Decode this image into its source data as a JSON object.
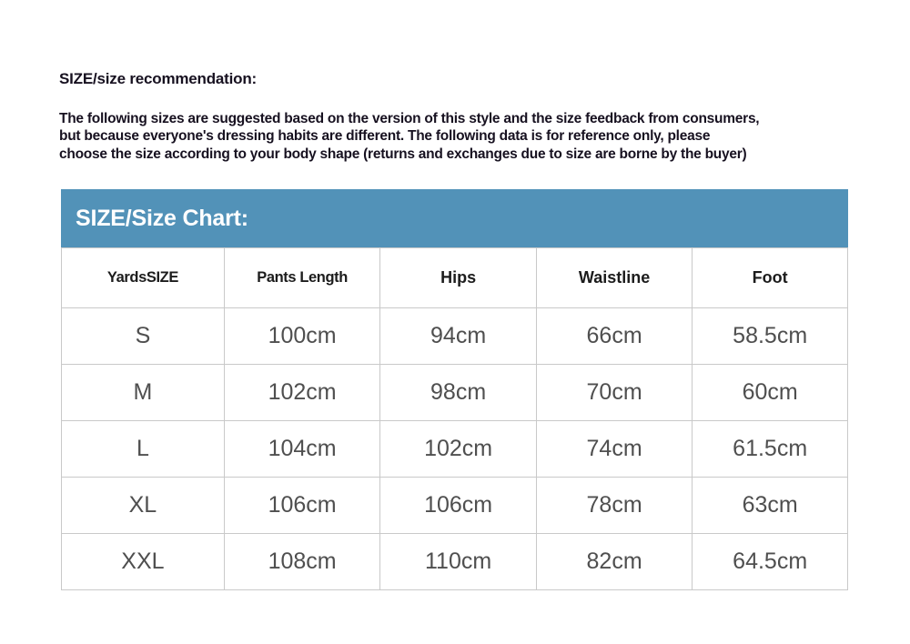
{
  "page": {
    "heading": "SIZE/size recommendation:",
    "intro_lines": [
      "The following sizes are suggested based on the version of this style and the size feedback from consumers,",
      "but because everyone's dressing habits are different. The following data is for reference only, please",
      "choose the size according to your body shape (returns and exchanges due to size are borne by the buyer)"
    ]
  },
  "size_chart": {
    "title": "SIZE/Size Chart:",
    "header_bg_color": "#5292B8",
    "border_color": "#c9c9c9",
    "columns": [
      "YardsSIZE",
      "Pants Length",
      "Hips",
      "Waistline",
      "Foot"
    ],
    "rows": [
      {
        "size": "S",
        "values": [
          "100cm",
          "94cm",
          "66cm",
          "58.5cm"
        ]
      },
      {
        "size": "M",
        "values": [
          "102cm",
          "98cm",
          "70cm",
          "60cm"
        ]
      },
      {
        "size": "L",
        "values": [
          "104cm",
          "102cm",
          "74cm",
          "61.5cm"
        ]
      },
      {
        "size": "XL",
        "values": [
          "106cm",
          "106cm",
          "78cm",
          "63cm"
        ]
      },
      {
        "size": "XXL",
        "values": [
          "108cm",
          "110cm",
          "82cm",
          "64.5cm"
        ]
      }
    ]
  }
}
